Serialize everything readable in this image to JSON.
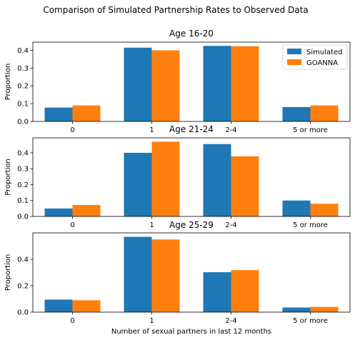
{
  "figure_title": "Comparison of Simulated Partnership Rates to Observed Data",
  "chart_data": [
    {
      "type": "bar",
      "title": "Age 16-20",
      "categories": [
        "0",
        "1",
        "2-4",
        "5 or more"
      ],
      "series": [
        {
          "name": "Simulated",
          "color": "#1f77b4",
          "values": [
            0.078,
            0.415,
            0.425,
            0.081
          ]
        },
        {
          "name": "GOANNA",
          "color": "#ff7f0e",
          "values": [
            0.09,
            0.4,
            0.423,
            0.09
          ]
        }
      ],
      "xlabel": "",
      "ylabel": "Proportion",
      "ylim": [
        0,
        0.446
      ],
      "yticks": [
        0.0,
        0.1,
        0.2,
        0.3,
        0.4
      ],
      "ytick_labels": [
        "0.0",
        "0.1",
        "0.2",
        "0.3",
        "0.4"
      ],
      "legend": "top-right",
      "grid": false
    },
    {
      "type": "bar",
      "title": "Age 21-24",
      "categories": [
        "0",
        "1",
        "2-4",
        "5 or more"
      ],
      "series": [
        {
          "name": "Simulated",
          "color": "#1f77b4",
          "values": [
            0.05,
            0.4,
            0.455,
            0.1
          ]
        },
        {
          "name": "GOANNA",
          "color": "#ff7f0e",
          "values": [
            0.072,
            0.47,
            0.378,
            0.08
          ]
        }
      ],
      "xlabel": "",
      "ylabel": "Proportion",
      "ylim": [
        0,
        0.494
      ],
      "yticks": [
        0.0,
        0.1,
        0.2,
        0.3,
        0.4
      ],
      "ytick_labels": [
        "0.0",
        "0.1",
        "0.2",
        "0.3",
        "0.4"
      ],
      "grid": false
    },
    {
      "type": "bar",
      "title": "Age 25-29",
      "categories": [
        "0",
        "1",
        "2-4",
        "5 or more"
      ],
      "series": [
        {
          "name": "Simulated",
          "color": "#1f77b4",
          "values": [
            0.095,
            0.57,
            0.302,
            0.035
          ]
        },
        {
          "name": "GOANNA",
          "color": "#ff7f0e",
          "values": [
            0.09,
            0.55,
            0.318,
            0.04
          ]
        }
      ],
      "xlabel": "Number of sexual partners in last 12 months",
      "ylabel": "Proportion",
      "ylim": [
        0,
        0.6
      ],
      "yticks": [
        0.0,
        0.2,
        0.4
      ],
      "ytick_labels": [
        "0.0",
        "0.2",
        "0.4"
      ],
      "grid": false
    }
  ]
}
